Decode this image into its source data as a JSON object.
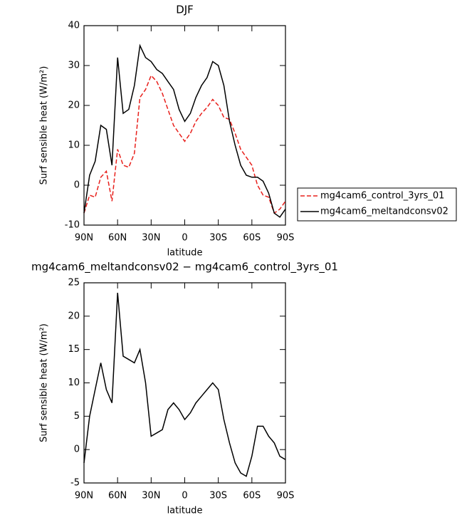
{
  "chart_data": [
    {
      "type": "line",
      "title": "DJF",
      "xlabel": "latitude",
      "ylabel": "Surf sensible heat (W/m²)",
      "x": [
        90,
        85,
        80,
        75,
        70,
        65,
        60,
        55,
        50,
        45,
        40,
        35,
        30,
        25,
        20,
        15,
        10,
        5,
        0,
        -5,
        -10,
        -15,
        -20,
        -25,
        -30,
        -35,
        -40,
        -45,
        -50,
        -55,
        -60,
        -65,
        -70,
        -75,
        -80,
        -85,
        -90
      ],
      "series": [
        {
          "name": "mg4cam6_control_3yrs_01",
          "color": "#e8201c",
          "line_style": "dashed",
          "values": [
            -7,
            -2.5,
            -3,
            2,
            3.5,
            -4,
            9,
            5,
            4.5,
            8,
            22,
            24,
            27.5,
            26,
            23,
            19,
            15,
            13,
            11,
            13,
            16,
            18,
            19.5,
            21.5,
            20,
            17,
            16.5,
            13,
            9,
            7,
            5,
            0,
            -2.5,
            -3,
            -7,
            -6,
            -4
          ]
        },
        {
          "name": "mg4cam6_meltandconsv02",
          "color": "#000000",
          "line_style": "solid",
          "values": [
            -7,
            2.5,
            6,
            15,
            14,
            5,
            32,
            18,
            19,
            25,
            35,
            32,
            31,
            29,
            28,
            26,
            24,
            19,
            16,
            18,
            22,
            25,
            27,
            31,
            30,
            25,
            16,
            10,
            5,
            2.5,
            2,
            2,
            1,
            -2,
            -7,
            -8,
            -6
          ]
        }
      ],
      "legend": "right",
      "xlim": [
        90,
        -90
      ],
      "xticks": [
        {
          "value": 90,
          "label": "90N"
        },
        {
          "value": 60,
          "label": "60N"
        },
        {
          "value": 30,
          "label": "30N"
        },
        0,
        {
          "value": -30,
          "label": "30S"
        },
        {
          "value": -60,
          "label": "60S"
        },
        {
          "value": -90,
          "label": "90S"
        }
      ],
      "ylim": [
        -10,
        40
      ],
      "yticks": [
        -10,
        0,
        10,
        20,
        30,
        40
      ]
    },
    {
      "type": "line",
      "title": "mg4cam6_meltandconsv02 − mg4cam6_control_3yrs_01",
      "xlabel": "latitude",
      "ylabel": "Surf sensible heat (W/m²)",
      "x": [
        90,
        85,
        80,
        75,
        70,
        65,
        60,
        55,
        50,
        45,
        40,
        35,
        30,
        25,
        20,
        15,
        10,
        5,
        0,
        -5,
        -10,
        -15,
        -20,
        -25,
        -30,
        -35,
        -40,
        -45,
        -50,
        -55,
        -60,
        -65,
        -70,
        -75,
        -80,
        -85,
        -90
      ],
      "values": [
        -2,
        5,
        9,
        13,
        9,
        7,
        23.5,
        14,
        13.5,
        13,
        15,
        10,
        2,
        2.5,
        3,
        6,
        7,
        6,
        4.5,
        5.5,
        7,
        8,
        9,
        10,
        9,
        4.5,
        1,
        -2,
        -3.5,
        -4,
        -1,
        3.5,
        3.5,
        2,
        1,
        -1,
        -1.5
      ],
      "color": "#000000",
      "xlim": [
        90,
        -90
      ],
      "xticks": [
        {
          "value": 90,
          "label": "90N"
        },
        {
          "value": 60,
          "label": "60N"
        },
        {
          "value": 30,
          "label": "30N"
        },
        0,
        {
          "value": -30,
          "label": "30S"
        },
        {
          "value": -60,
          "label": "60S"
        },
        {
          "value": -90,
          "label": "90S"
        }
      ],
      "ylim": [
        -5,
        25
      ],
      "yticks": [
        -5,
        0,
        5,
        10,
        15,
        20,
        25
      ]
    }
  ]
}
